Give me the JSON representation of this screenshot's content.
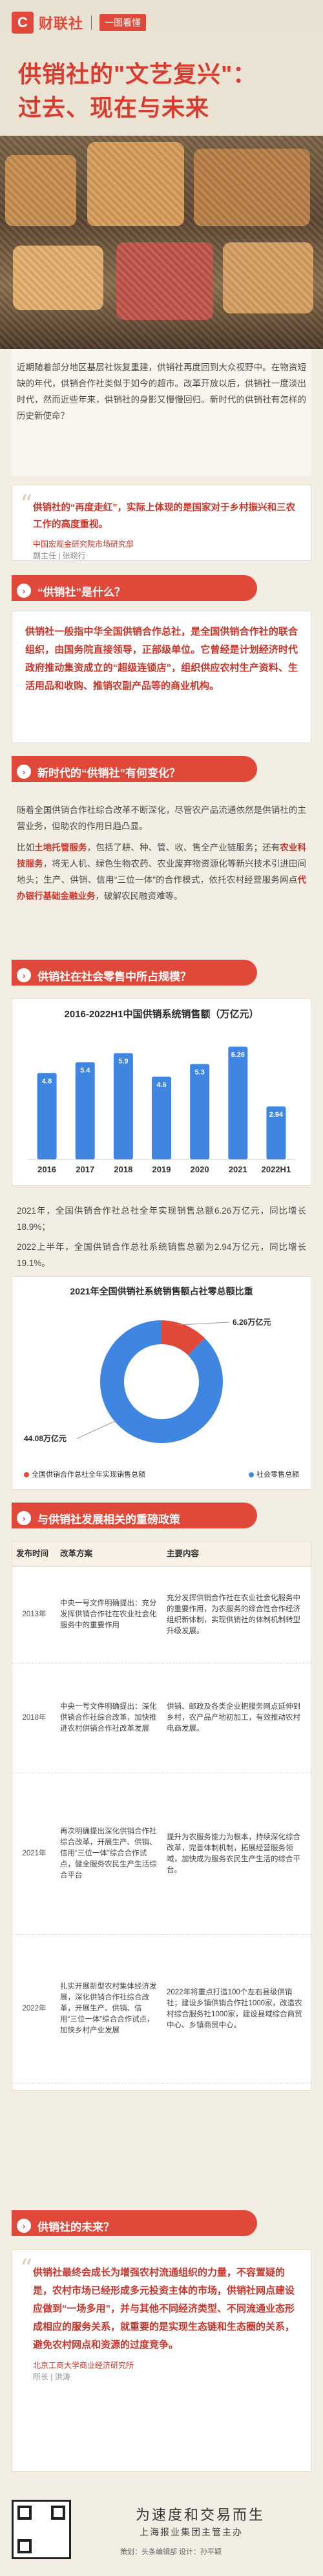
{
  "header": {
    "logo_mark": "C",
    "logo_text": "财联社",
    "tag": "一图看懂",
    "title": "供销社的\"文艺复兴\"：",
    "subtitle": "过去、现在与未来"
  },
  "intro": {
    "text": "近期随着部分地区基层社恢复重建，供销社再度回到大众视野中。在物资短缺的年代，供销合作社类似于如今的超市。改革开放以后，供销社一度淡出时代，然而近些年来，供销社的身影又慢慢回归。新时代的供销社有怎样的历史新使命？"
  },
  "quote1": {
    "text": "供销社的“再度走红”，实际上体现的是国家对于乡村振兴和三农工作的高度重视。",
    "source_org": "中国宏观金研究院市场研究部",
    "source_name": "副主任 | 张晓行"
  },
  "section1": {
    "title": "“供销社”是什么？",
    "card": "供销社一般指中华全国供销合作总社，是全国供销合作社的联合组织，由国务院直接领导，正部级单位。它曾经是计划经济时代政府推动集资成立的“超级连锁店”，组织供应农村生产资料、生活用品和收购、推销农副产品等的商业机构。"
  },
  "section2": {
    "title": "新时代的“供销社”有何变化？",
    "p1": "随着全国供销合作社综合改革不断深化，尽管农产品流通依然是供销社的主营业务，但助农的作用日趋凸显。",
    "p2_pre": "比如",
    "p2_b1": "土地托管服务",
    "p2_mid1": "，包括了耕、种、管、收、售全产业链服务；还有",
    "p2_b2": "农业科技服务",
    "p2_mid2": "，将无人机、绿色生物农药、农业废弃物资源化等新兴技术引进田间地头；生产、供销、信用“三位一体”的合作模式，依托农村经营服务网点",
    "p2_r": "代办银行基础金融业务",
    "p2_end": "，破解农民融资难等。"
  },
  "section3": {
    "title": "供销社在社会零售中所占规模？",
    "note1": "2021年，全国供销合作社总社全年实现销售总额6.26万亿元，同比增长18.9%；",
    "note2": "2022上半年，全国供销合作总社系统销售总额为2.94万亿元，同比增长19.1%。"
  },
  "chart_data": [
    {
      "type": "bar",
      "title": "2016-2022H1中国供销系统销售额（万亿元）",
      "categories": [
        "2016",
        "2017",
        "2018",
        "2019",
        "2020",
        "2021",
        "2022H1"
      ],
      "values": [
        4.8,
        5.4,
        5.9,
        4.6,
        5.3,
        6.26,
        2.94
      ],
      "value_labels": [
        "4.8",
        "5.4",
        "5.9",
        "4.6",
        "5.3",
        "6.26",
        "2.94"
      ],
      "ylim": [
        0,
        7
      ],
      "color": "#3f86e3"
    },
    {
      "type": "pie",
      "title": "2021年全国供销社系统销售额占社零总额比重",
      "slices": [
        {
          "label": "全国供销合作总社全年实现销售总额",
          "value": 6.26,
          "value_label": "6.26万亿元",
          "color": "#e0493a"
        },
        {
          "label": "社会零售总额",
          "value": 44.08,
          "value_label": "44.08万亿元",
          "color": "#3f86e3"
        }
      ]
    }
  ],
  "section4": {
    "title": "与供销社发展相关的重磅政策",
    "headers": [
      "发布时间",
      "改革方案",
      "主要内容"
    ],
    "rows": [
      {
        "year": "2013年",
        "reform": "中央一号文件明确提出：充分发挥供销合作社在农业社会化服务中的重要作用",
        "content": "充分发挥供销合作社在农业社会化服务中的重要作用，为农服务的综合性合作经济组织新体制，实现供销社的体制机制转型升级发展。"
      },
      {
        "year": "2018年",
        "reform": "中央一号文件明确提出：深化供销合作社综合改革，加快推进农村供销合作社改革发展",
        "content": "供销、邮政及各类企业把服务网点延伸到乡村，农产品产地初加工，有效推动农村电商发展。"
      },
      {
        "year": "2021年",
        "reform": "再次明确提出深化供销合作社综合改革，开展生产、供销、信用“三位一体”综合合作试点，健全服务农民生产生活综合平台",
        "content": "提升为农服务能力为根本，持续深化综合改革，完善体制机制，拓展经营服务领域，加快成为服务农民生产生活的综合平台。"
      },
      {
        "year": "2022年",
        "reform": "扎实开展新型农村集体经济发展，深化供销合作社综合改革，开展生产、供销、信用“三位一体”综合合作试点，加快乡村产业发展",
        "content": "2022年将重点打造100个左右县级供销社；建设乡镇供销合作社1000家，改造农村综合服务社1000家，建设县域综合商贸中心、乡镇商贸中心。"
      }
    ]
  },
  "section5": {
    "title": "供销社的未来？",
    "quote": "供销社最终会成长为增强农村流通组织的力量，不容置疑的是，农村市场已经形成多元投资主体的市场，供销社网点建设应做到“一场多用”，并与其他不同经济类型、不同流通业态形成相应的服务关系，就重要的是实现生态链和生态圈的关系，避免农村网点和资源的过度竞争。",
    "source_org": "北京工商大学商业经济研究所",
    "source_name": "所长 | 洪涛"
  },
  "footer": {
    "slogan": "为速度和交易而生",
    "org": "上海报业集团主管主办",
    "credit": "策划：头条编辑部    设计：孙平颖"
  }
}
